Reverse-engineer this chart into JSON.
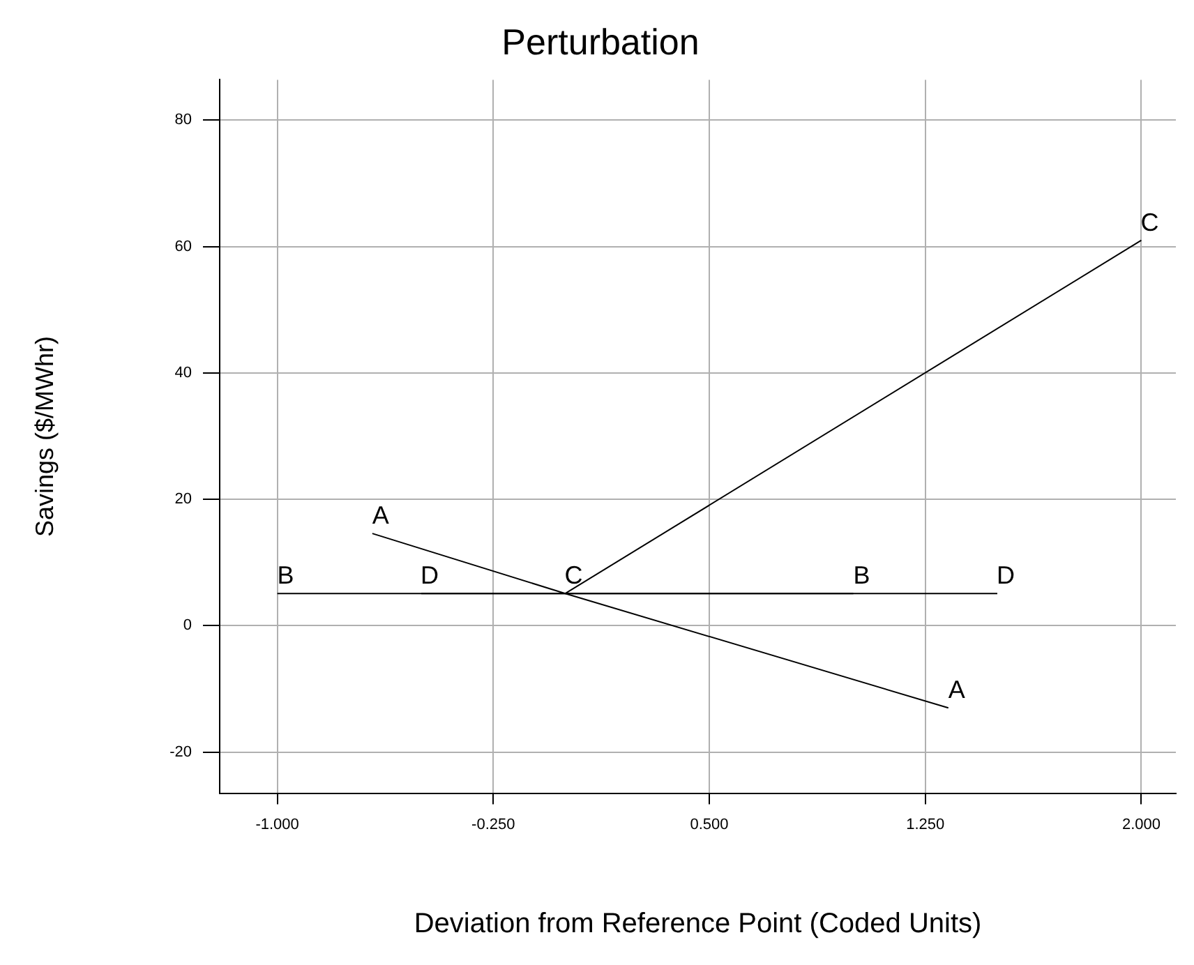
{
  "chart_data": {
    "type": "line",
    "title": "Perturbation",
    "xlabel": "Deviation from Reference Point (Coded Units)",
    "ylabel": "Savings ($/MWhr)",
    "series": [
      {
        "name": "A",
        "color": "#000000",
        "x": [
          -0.67,
          0,
          1.33
        ],
        "values": [
          14.6,
          5.1,
          -13
        ]
      },
      {
        "name": "B",
        "color": "#000000",
        "x": [
          -1,
          0,
          1
        ],
        "values": [
          5.1,
          5.1,
          5.1
        ]
      },
      {
        "name": "C",
        "color": "#000000",
        "x": [
          0,
          2
        ],
        "values": [
          5.1,
          61
        ]
      },
      {
        "name": "D",
        "color": "#000000",
        "x": [
          -0.5,
          1.5
        ],
        "values": [
          5.1,
          5.1
        ]
      }
    ],
    "xlim": [
      -1.2,
      2.12
    ],
    "ylim": [
      -26.5,
      86.4
    ],
    "xticks": [
      {
        "value": -1,
        "label": "-1.000"
      },
      {
        "value": -0.25,
        "label": "-0.250"
      },
      {
        "value": 0.5,
        "label": "0.500"
      },
      {
        "value": 1.25,
        "label": "1.250"
      },
      {
        "value": 2,
        "label": "2.000"
      }
    ],
    "yticks": [
      -20,
      0,
      20,
      40,
      60,
      80
    ],
    "grid": true,
    "legend": false,
    "marker": "none",
    "line_style": "solid"
  }
}
